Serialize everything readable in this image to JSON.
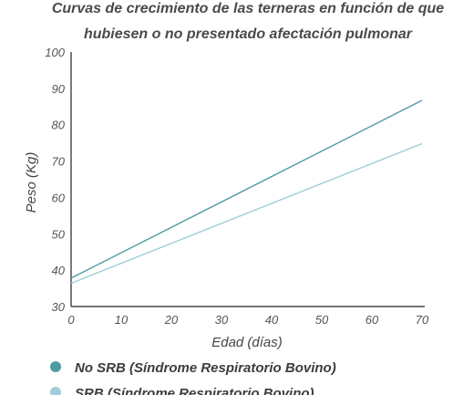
{
  "chart_data": {
    "type": "line",
    "title_lines": [
      "Curvas de crecimiento de las terneras en  función de que",
      "hubiesen o no presentado afectación pulmonar"
    ],
    "xlabel": "Edad (días)",
    "ylabel": "Peso (Kg)",
    "xlim": [
      0,
      70
    ],
    "ylim": [
      30,
      100
    ],
    "x_ticks": [
      0,
      10,
      20,
      30,
      40,
      50,
      60,
      70
    ],
    "y_ticks": [
      30,
      40,
      50,
      60,
      70,
      80,
      90,
      100
    ],
    "grid": false,
    "legend_position": "bottom-left",
    "series": [
      {
        "name": "No SRB (Síndrome Respiratorio Bovino)",
        "color": "#4c9ba5",
        "x": [
          0,
          70
        ],
        "y": [
          37.8,
          86.7
        ]
      },
      {
        "name": "SRB (Síndrome Respiratorio Bovino)",
        "color": "#9ecfd8",
        "x": [
          0,
          70
        ],
        "y": [
          36.4,
          74.8
        ]
      }
    ]
  }
}
